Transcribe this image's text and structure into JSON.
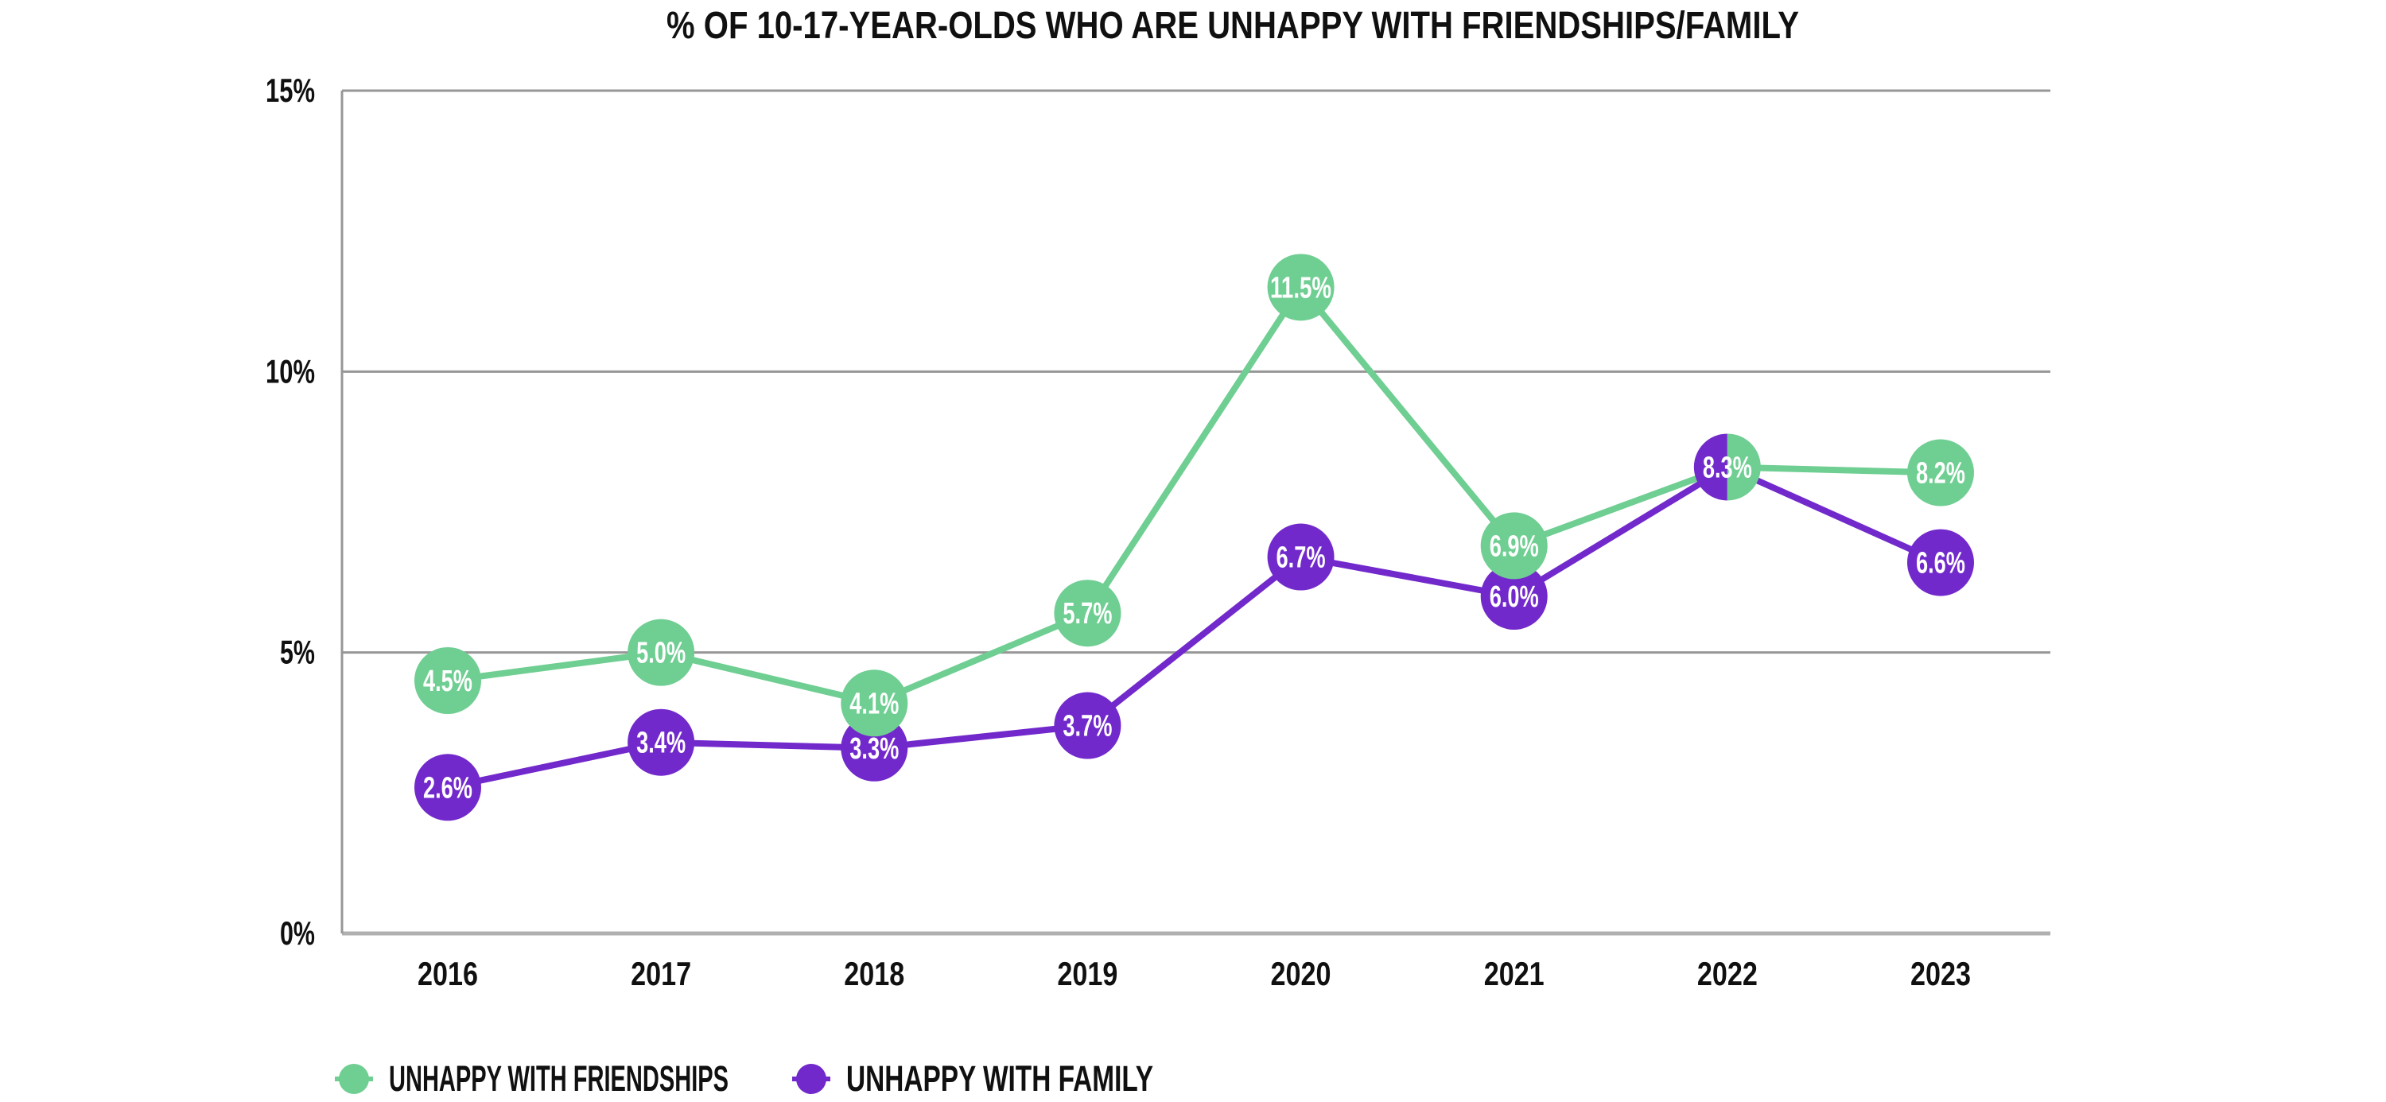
{
  "title": "% OF 10-17-YEAR-OLDS WHO ARE UNHAPPY WITH FRIENDSHIPS/FAMILY",
  "colors": {
    "friendships": "#6FCE92",
    "family": "#7229CB",
    "grid": "#979797",
    "axis_bottom": "#b0b0b0",
    "marker_label": "#ffffff",
    "text": "#101010"
  },
  "chart_data": {
    "type": "line",
    "categories": [
      "2016",
      "2017",
      "2018",
      "2019",
      "2020",
      "2021",
      "2022",
      "2023"
    ],
    "series": [
      {
        "key": "family",
        "name": "UNHAPPY WITH FAMILY",
        "values": [
          2.6,
          3.4,
          3.3,
          3.7,
          6.7,
          6.0,
          8.3,
          6.6
        ],
        "labels": [
          "2.6%",
          "3.4%",
          "3.3%",
          "3.7%",
          "6.7%",
          "6.0%",
          "8.3%",
          "6.6%"
        ]
      },
      {
        "key": "friendships",
        "name": "UNHAPPY WITH FRIENDSHIPS",
        "values": [
          4.5,
          5.0,
          4.1,
          5.7,
          11.5,
          6.9,
          8.3,
          8.2
        ],
        "labels": [
          "4.5%",
          "5.0%",
          "4.1%",
          "5.7%",
          "11.5%",
          "6.9%",
          "8.3%",
          "8.2%"
        ]
      }
    ],
    "split_marker": {
      "category": "2022",
      "index": 6,
      "value": 8.3,
      "label": "8.3%",
      "left_key": "family",
      "right_key": "friendships"
    },
    "yticks": [
      {
        "value": 15,
        "label": "15%"
      },
      {
        "value": 10,
        "label": "10%"
      },
      {
        "value": 5,
        "label": "5%"
      },
      {
        "value": 0,
        "label": "0%"
      }
    ],
    "ylim": [
      0,
      15
    ],
    "grid": "horizontal",
    "legend_position": "bottom-left"
  },
  "legend": {
    "items": [
      {
        "label": "UNHAPPY WITH FRIENDSHIPS",
        "color": "#6FCE92"
      },
      {
        "label": "UNHAPPY WITH FAMILY",
        "color": "#7229CB"
      }
    ]
  }
}
